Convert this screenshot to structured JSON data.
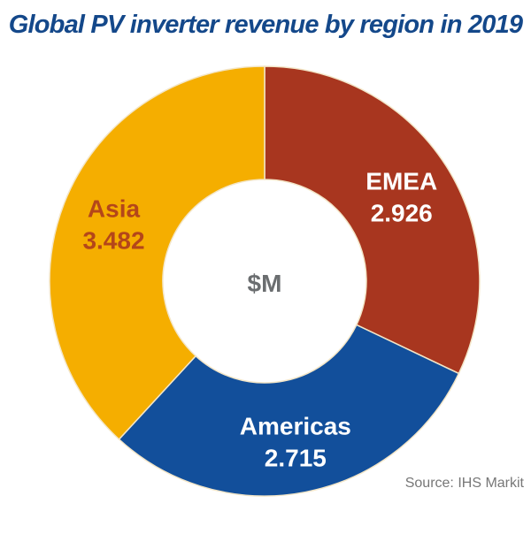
{
  "chart_data": {
    "type": "pie",
    "title": "Global PV inverter revenue by region in 2019",
    "center_label": "$M",
    "source": "Source: IHS Markit",
    "slices": [
      {
        "label": "EMEA",
        "value": 2.926,
        "value_label": "2.926",
        "color": "#a8361f",
        "label_color": "#ffffff"
      },
      {
        "label": "Americas",
        "value": 2.715,
        "value_label": "2.715",
        "color": "#124f9b",
        "label_color": "#ffffff"
      },
      {
        "label": "Asia",
        "value": 3.482,
        "value_label": "3.482",
        "color": "#f5ae00",
        "label_color": "#b4461a"
      }
    ],
    "start_angle": "12 o'clock",
    "direction": "clockwise",
    "donut": true
  }
}
